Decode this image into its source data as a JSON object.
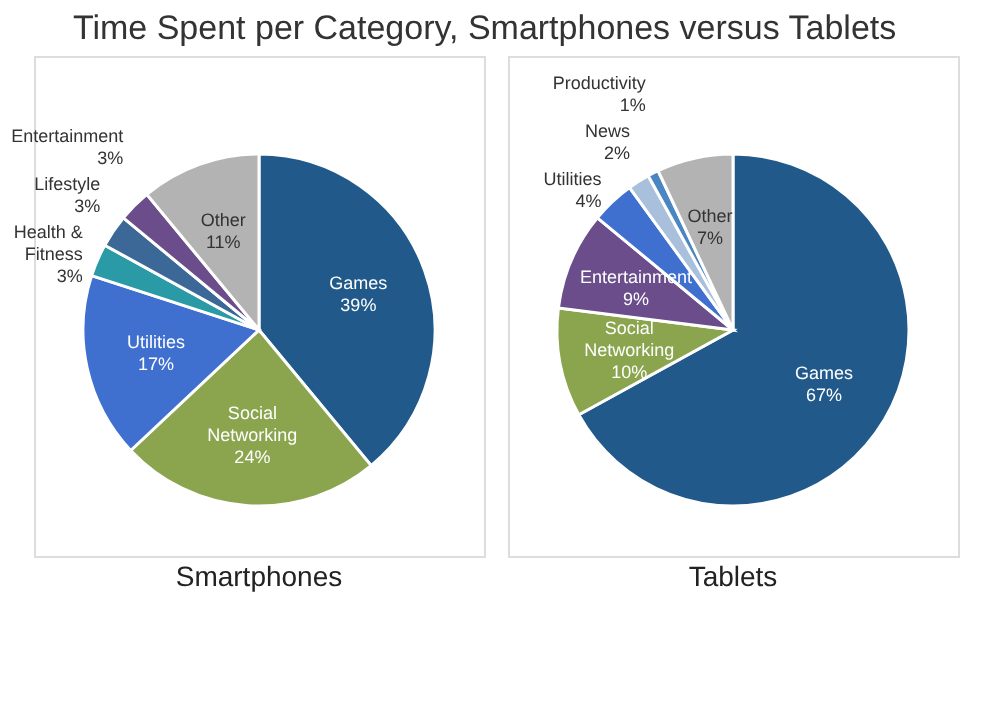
{
  "chart_data": [
    {
      "type": "pie",
      "title": "Time Spent per Category, Smartphones versus Tablets",
      "subtitle": "Smartphones",
      "categories": [
        "Games",
        "Social Networking",
        "Utilities",
        "Health & Fitness",
        "Lifestyle",
        "Entertainment",
        "Other"
      ],
      "values": [
        39,
        24,
        17,
        3,
        3,
        3,
        11
      ],
      "value_labels": [
        "39%",
        "24%",
        "17%",
        "3%",
        "3%",
        "3%",
        "11%"
      ],
      "colors": [
        "#215a8a",
        "#8aa54e",
        "#3f6fcf",
        "#2a9aa6",
        "#3b6896",
        "#6a4d8a",
        "#b3b3b3"
      ]
    },
    {
      "type": "pie",
      "subtitle": "Tablets",
      "categories": [
        "Games",
        "Social Networking",
        "Entertainment",
        "Utilities",
        "News",
        "Productivity",
        "Other"
      ],
      "values": [
        67,
        10,
        9,
        4,
        2,
        1,
        7
      ],
      "value_labels": [
        "67%",
        "10%",
        "9%",
        "4%",
        "2%",
        "1%",
        "7%"
      ],
      "colors": [
        "#215a8a",
        "#8aa54e",
        "#6a4d8a",
        "#3f6fcf",
        "#a8c0dc",
        "#4a86c4",
        "#b3b3b3"
      ]
    }
  ]
}
